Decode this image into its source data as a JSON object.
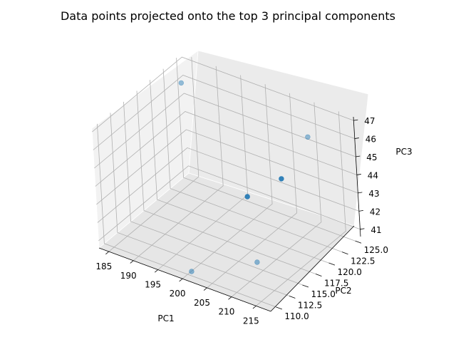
{
  "chart_data": {
    "type": "scatter",
    "title": "Data points projected onto the top 3 principal components",
    "xlabel": "PC1",
    "ylabel": "PC2",
    "zlabel": "PC3",
    "xlim": [
      183,
      218
    ],
    "ylim": [
      109,
      126
    ],
    "zlim": [
      40.6,
      47.2
    ],
    "x_ticks": [
      "185",
      "190",
      "195",
      "200",
      "205",
      "210",
      "215"
    ],
    "y_ticks": [
      "110.0",
      "112.5",
      "115.0",
      "117.5",
      "120.0",
      "122.5",
      "125.0"
    ],
    "z_ticks": [
      "41",
      "42",
      "43",
      "44",
      "45",
      "46",
      "47"
    ],
    "grid": true,
    "marker_color": "#1f77b4",
    "points": [
      {
        "x": 186,
        "y": 123,
        "z": 46.6,
        "alpha": 0.45
      },
      {
        "x": 214,
        "y": 121,
        "z": 46.9,
        "alpha": 0.45
      },
      {
        "x": 208,
        "y": 121,
        "z": 44.0,
        "alpha": 0.9
      },
      {
        "x": 203,
        "y": 119,
        "z": 43.0,
        "alpha": 0.9
      },
      {
        "x": 210,
        "y": 114,
        "z": 41.3,
        "alpha": 0.5
      },
      {
        "x": 202,
        "y": 109,
        "z": 41.2,
        "alpha": 0.5
      }
    ]
  }
}
